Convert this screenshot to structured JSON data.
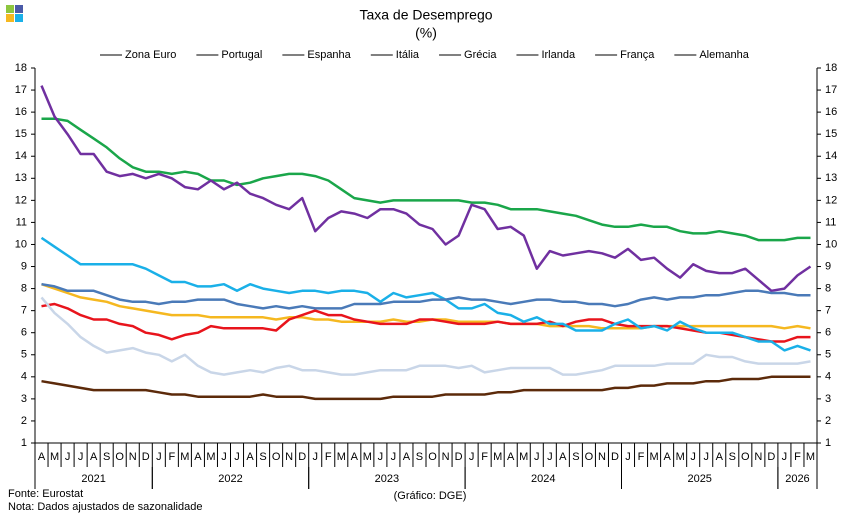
{
  "chart_data": {
    "type": "line",
    "title": "Taxa de Desemprego",
    "subtitle": "(%)",
    "categories": [
      "A",
      "M",
      "J",
      "J",
      "A",
      "S",
      "O",
      "N",
      "D",
      "J",
      "F",
      "M",
      "A",
      "M",
      "J",
      "J",
      "A",
      "S",
      "O",
      "N",
      "D",
      "J",
      "F",
      "M",
      "A",
      "M",
      "J",
      "J",
      "A",
      "S",
      "O",
      "N",
      "D",
      "J",
      "F",
      "M",
      "A",
      "M",
      "J",
      "J",
      "A",
      "S",
      "O",
      "N",
      "D",
      "J",
      "F",
      "M",
      "A",
      "M",
      "J",
      "J",
      "A",
      "S",
      "O",
      "N",
      "D",
      "J",
      "F",
      "M"
    ],
    "x_groups": [
      {
        "label": "2021",
        "count": 9
      },
      {
        "label": "2022",
        "count": 12
      },
      {
        "label": "2023",
        "count": 12
      },
      {
        "label": "2024",
        "count": 12
      },
      {
        "label": "2025",
        "count": 12
      },
      {
        "label": "2026",
        "count": 3
      }
    ],
    "ylim": [
      1,
      18
    ],
    "yticks": [
      1,
      2,
      3,
      4,
      5,
      6,
      7,
      8,
      9,
      10,
      11,
      12,
      13,
      14,
      15,
      16,
      17,
      18
    ],
    "y2lim": [
      1,
      18
    ],
    "y2ticks": [
      1,
      2,
      3,
      4,
      5,
      6,
      7,
      8,
      9,
      10,
      11,
      12,
      13,
      14,
      15,
      16,
      17,
      18
    ],
    "grid": false,
    "legend": "top",
    "series": [
      {
        "name": "Zona Euro",
        "color": "#f5b820",
        "values": [
          8.2,
          8.0,
          7.8,
          7.6,
          7.5,
          7.4,
          7.2,
          7.1,
          7.0,
          6.9,
          6.8,
          6.8,
          6.8,
          6.7,
          6.7,
          6.7,
          6.7,
          6.7,
          6.6,
          6.7,
          6.7,
          6.6,
          6.6,
          6.5,
          6.5,
          6.5,
          6.5,
          6.6,
          6.5,
          6.5,
          6.6,
          6.6,
          6.5,
          6.5,
          6.5,
          6.5,
          6.4,
          6.4,
          6.4,
          6.3,
          6.3,
          6.3,
          6.3,
          6.2,
          6.2,
          6.2,
          6.2,
          6.3,
          6.3,
          6.3,
          6.3,
          6.3,
          6.3,
          6.3,
          6.3,
          6.3,
          6.3,
          6.2,
          6.3,
          6.2
        ]
      },
      {
        "name": "Portugal",
        "color": "#e8141c",
        "values": [
          7.2,
          7.3,
          7.1,
          6.8,
          6.6,
          6.6,
          6.4,
          6.3,
          6.0,
          5.9,
          5.7,
          5.9,
          6.0,
          6.3,
          6.2,
          6.2,
          6.2,
          6.2,
          6.1,
          6.6,
          6.8,
          7.0,
          6.8,
          6.8,
          6.6,
          6.5,
          6.4,
          6.4,
          6.4,
          6.6,
          6.6,
          6.5,
          6.4,
          6.4,
          6.4,
          6.5,
          6.4,
          6.4,
          6.4,
          6.5,
          6.3,
          6.5,
          6.6,
          6.6,
          6.4,
          6.3,
          6.3,
          6.3,
          6.3,
          6.2,
          6.1,
          6.0,
          6.0,
          5.9,
          5.8,
          5.7,
          5.6,
          5.6,
          5.8,
          5.8
        ]
      },
      {
        "name": "Espanha",
        "color": "#1aa64a",
        "values": [
          15.7,
          15.7,
          15.6,
          15.2,
          14.8,
          14.4,
          13.9,
          13.5,
          13.3,
          13.3,
          13.2,
          13.3,
          13.2,
          12.9,
          12.9,
          12.7,
          12.8,
          13.0,
          13.1,
          13.2,
          13.2,
          13.1,
          12.9,
          12.5,
          12.1,
          12.0,
          11.9,
          12.0,
          12.0,
          12.0,
          12.0,
          12.0,
          12.0,
          11.9,
          11.9,
          11.8,
          11.6,
          11.6,
          11.6,
          11.5,
          11.4,
          11.3,
          11.1,
          10.9,
          10.8,
          10.8,
          10.9,
          10.8,
          10.8,
          10.6,
          10.5,
          10.5,
          10.6,
          10.5,
          10.4,
          10.2,
          10.2,
          10.2,
          10.3,
          10.3
        ]
      },
      {
        "name": "Itália",
        "color": "#1ab0e8",
        "values": [
          10.3,
          9.9,
          9.5,
          9.1,
          9.1,
          9.1,
          9.1,
          9.1,
          8.9,
          8.6,
          8.3,
          8.3,
          8.1,
          8.1,
          8.2,
          7.9,
          8.2,
          8.0,
          7.9,
          7.8,
          7.9,
          7.9,
          7.8,
          7.9,
          7.9,
          7.8,
          7.4,
          7.8,
          7.6,
          7.7,
          7.8,
          7.5,
          7.1,
          7.1,
          7.3,
          6.9,
          6.8,
          6.5,
          6.7,
          6.4,
          6.4,
          6.1,
          6.1,
          6.1,
          6.4,
          6.6,
          6.2,
          6.3,
          6.1,
          6.5,
          6.2,
          6.0,
          6.0,
          6.0,
          5.8,
          5.6,
          5.6,
          5.2,
          5.4,
          5.2
        ]
      },
      {
        "name": "Grécia",
        "color": "#7030a0",
        "values": [
          17.2,
          15.8,
          15.0,
          14.1,
          14.1,
          13.3,
          13.1,
          13.2,
          13.0,
          13.2,
          13.0,
          12.6,
          12.5,
          12.9,
          12.5,
          12.8,
          12.3,
          12.1,
          11.8,
          11.6,
          12.1,
          10.6,
          11.2,
          11.5,
          11.4,
          11.2,
          11.6,
          11.6,
          11.4,
          10.9,
          10.7,
          10.0,
          10.4,
          11.8,
          11.6,
          10.7,
          10.8,
          10.4,
          8.9,
          9.7,
          9.5,
          9.6,
          9.7,
          9.6,
          9.4,
          9.8,
          9.3,
          9.4,
          8.9,
          8.5,
          9.1,
          8.8,
          8.7,
          8.7,
          8.9,
          8.4,
          7.9,
          8.0,
          8.6,
          9.0
        ]
      },
      {
        "name": "Irlanda",
        "color": "#c9d6e8",
        "values": [
          7.6,
          6.9,
          6.4,
          5.8,
          5.4,
          5.1,
          5.2,
          5.3,
          5.1,
          5.0,
          4.7,
          5.0,
          4.5,
          4.2,
          4.1,
          4.2,
          4.3,
          4.2,
          4.4,
          4.5,
          4.3,
          4.3,
          4.2,
          4.1,
          4.1,
          4.2,
          4.3,
          4.3,
          4.3,
          4.5,
          4.5,
          4.5,
          4.4,
          4.5,
          4.2,
          4.3,
          4.4,
          4.4,
          4.4,
          4.4,
          4.1,
          4.1,
          4.2,
          4.3,
          4.5,
          4.5,
          4.5,
          4.5,
          4.6,
          4.6,
          4.6,
          5.0,
          4.9,
          4.9,
          4.7,
          4.6,
          4.6,
          4.6,
          4.6,
          4.7
        ]
      },
      {
        "name": "França",
        "color": "#4a7ab8",
        "values": [
          8.2,
          8.1,
          7.9,
          7.9,
          7.9,
          7.7,
          7.5,
          7.4,
          7.4,
          7.3,
          7.4,
          7.4,
          7.5,
          7.5,
          7.5,
          7.3,
          7.2,
          7.1,
          7.2,
          7.1,
          7.2,
          7.1,
          7.1,
          7.1,
          7.3,
          7.3,
          7.3,
          7.4,
          7.4,
          7.4,
          7.5,
          7.5,
          7.6,
          7.5,
          7.5,
          7.4,
          7.3,
          7.4,
          7.5,
          7.5,
          7.4,
          7.4,
          7.3,
          7.3,
          7.2,
          7.3,
          7.5,
          7.6,
          7.5,
          7.6,
          7.6,
          7.7,
          7.7,
          7.8,
          7.9,
          7.9,
          7.8,
          7.8,
          7.7,
          7.7
        ]
      },
      {
        "name": "Alemanha",
        "color": "#5c2a0a",
        "values": [
          3.8,
          3.7,
          3.6,
          3.5,
          3.4,
          3.4,
          3.4,
          3.4,
          3.4,
          3.3,
          3.2,
          3.2,
          3.1,
          3.1,
          3.1,
          3.1,
          3.1,
          3.2,
          3.1,
          3.1,
          3.1,
          3.0,
          3.0,
          3.0,
          3.0,
          3.0,
          3.0,
          3.1,
          3.1,
          3.1,
          3.1,
          3.2,
          3.2,
          3.2,
          3.2,
          3.3,
          3.3,
          3.4,
          3.4,
          3.4,
          3.4,
          3.4,
          3.4,
          3.4,
          3.5,
          3.5,
          3.6,
          3.6,
          3.7,
          3.7,
          3.7,
          3.8,
          3.8,
          3.9,
          3.9,
          3.9,
          4.0,
          4.0,
          4.0,
          4.0
        ]
      }
    ]
  },
  "footer": {
    "source": "Fonte: Eurostat",
    "note": "Nota: Dados ajustados de sazonalidade",
    "credit": "(Gráfico: DGE)"
  }
}
